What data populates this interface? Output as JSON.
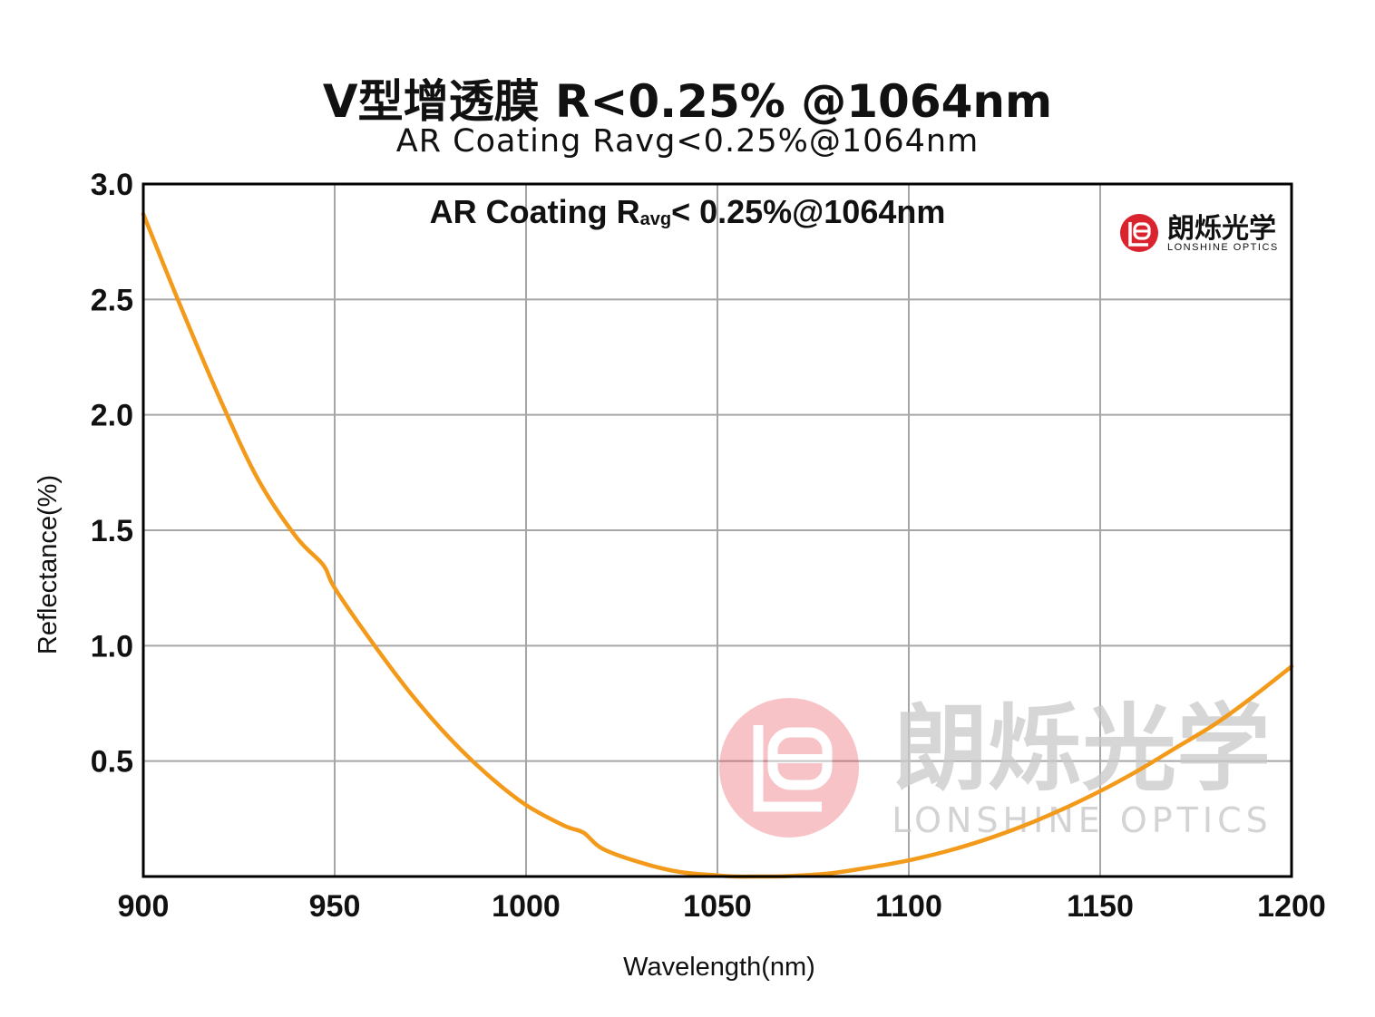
{
  "title": "V型增透膜 R<0.25% @1064nm",
  "subtitle": "AR Coating Ravg<0.25%@1064nm",
  "annotation": {
    "main": "AR Coating R",
    "subscript": "avg",
    "rest": "< 0.25%@1064nm"
  },
  "logo": {
    "cn": "朗烁光学",
    "en": "LONSHINE OPTICS",
    "color": "#d9232e"
  },
  "watermark": {
    "cn": "朗烁光学",
    "en": "LONSHINE OPTICS"
  },
  "chart_data": {
    "type": "line",
    "xlabel": "Wavelength(nm)",
    "ylabel": "Reflectance(%)",
    "xlim": [
      900,
      1200
    ],
    "ylim": [
      0,
      3.0
    ],
    "x_ticks": [
      900,
      950,
      1000,
      1050,
      1100,
      1150,
      1200
    ],
    "x_tick_labels": [
      "900",
      "950",
      "1000",
      "1050",
      "1100",
      "1150",
      "1200"
    ],
    "y_ticks": [
      0.5,
      1.0,
      1.5,
      2.0,
      2.5,
      3.0
    ],
    "y_tick_labels": [
      "0.5",
      "1.0",
      "1.5",
      "2.0",
      "2.5",
      "3.0"
    ],
    "grid": true,
    "series": [
      {
        "color": "#f39a1a",
        "x": [
          900,
          910,
          920,
          930,
          940,
          947,
          950,
          960,
          970,
          980,
          990,
          1000,
          1010,
          1015,
          1020,
          1030,
          1040,
          1050,
          1055,
          1060,
          1064,
          1070,
          1080,
          1090,
          1100,
          1110,
          1120,
          1130,
          1140,
          1150,
          1160,
          1170,
          1180,
          1190,
          1200
        ],
        "y": [
          2.87,
          2.46,
          2.07,
          1.72,
          1.47,
          1.35,
          1.25,
          1.01,
          0.79,
          0.6,
          0.44,
          0.31,
          0.22,
          0.19,
          0.12,
          0.06,
          0.02,
          0.005,
          0.0,
          0.0,
          0.0,
          0.003,
          0.015,
          0.04,
          0.07,
          0.11,
          0.16,
          0.22,
          0.29,
          0.37,
          0.46,
          0.56,
          0.66,
          0.78,
          0.91
        ]
      }
    ]
  }
}
